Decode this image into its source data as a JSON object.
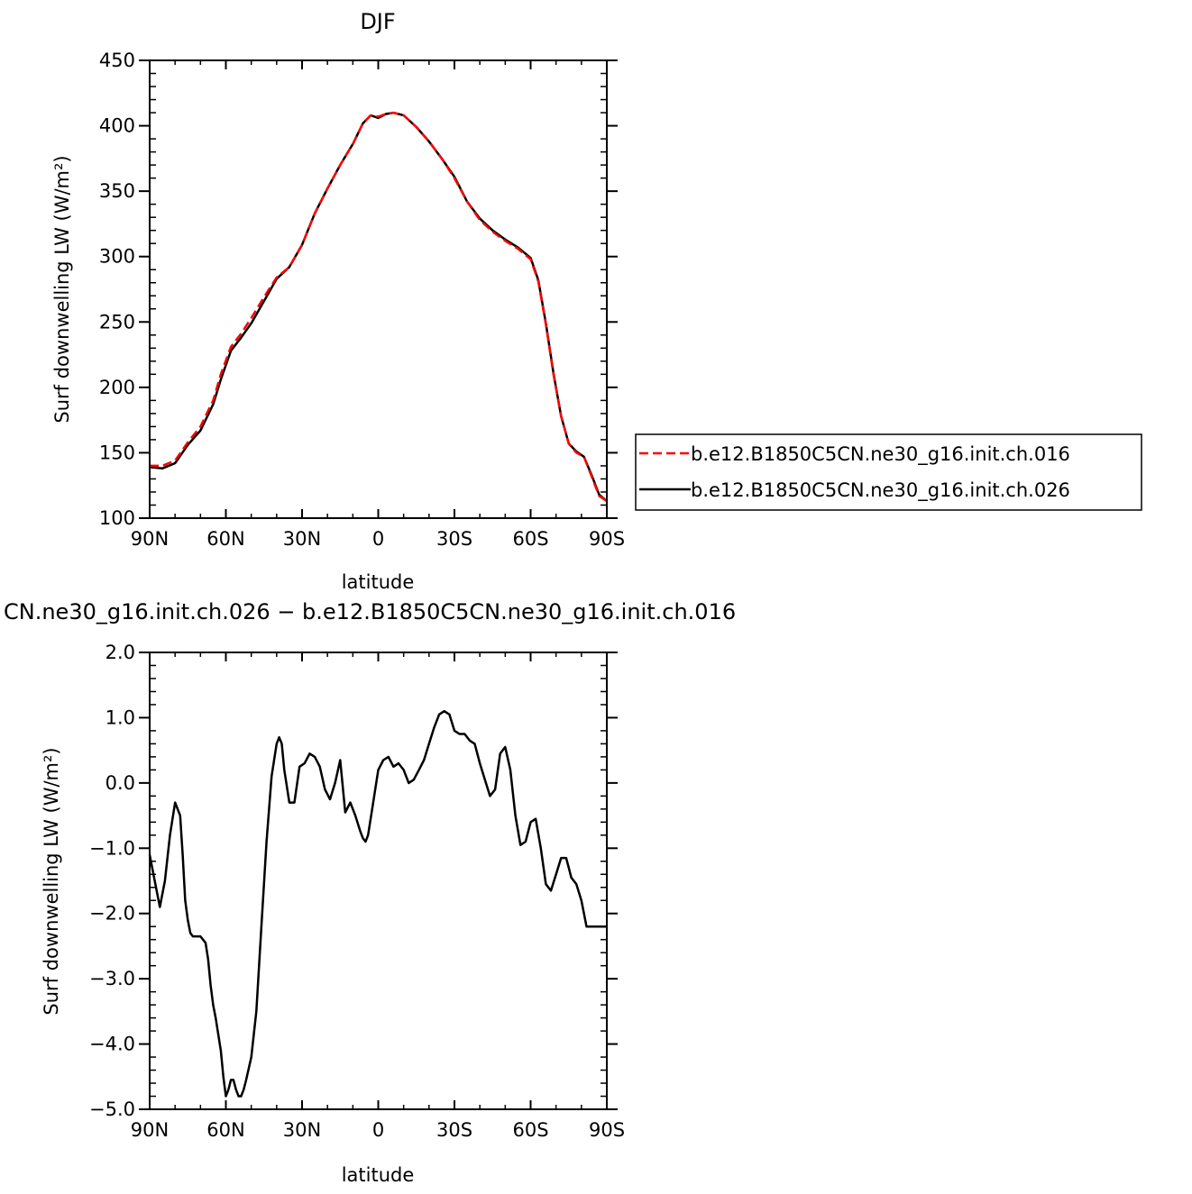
{
  "chart_data": [
    {
      "type": "line",
      "title": "DJF",
      "xlabel": "latitude",
      "ylabel": "Surf  downwelling LW  (W/m²)",
      "xlim": [
        90,
        -90
      ],
      "ylim": [
        100,
        450
      ],
      "x_ticks": [
        90,
        60,
        30,
        0,
        -30,
        -60,
        -90
      ],
      "x_tick_labels": [
        "90N",
        "60N",
        "30N",
        "0",
        "30S",
        "60S",
        "90S"
      ],
      "y_ticks": [
        100,
        150,
        200,
        250,
        300,
        350,
        400,
        450
      ],
      "y_tick_labels": [
        "100",
        "150",
        "200",
        "250",
        "300",
        "350",
        "400",
        "450"
      ],
      "legend_position": "right",
      "series": [
        {
          "name": "b.e12.B1850C5CN.ne30_g16.init.ch.016",
          "color": "#ff0000",
          "dash": "dashed",
          "x": [
            90,
            85,
            80,
            75,
            70,
            65,
            62,
            58,
            54,
            50,
            45,
            40,
            35,
            30,
            25,
            20,
            15,
            10,
            6,
            3,
            0,
            -3,
            -6,
            -10,
            -15,
            -20,
            -25,
            -30,
            -35,
            -40,
            -45,
            -50,
            -55,
            -60,
            -63,
            -66,
            -69,
            -72,
            -75,
            -78,
            -81,
            -84,
            -87,
            -90
          ],
          "y": [
            140,
            140,
            144,
            158,
            170,
            190,
            210,
            231,
            241,
            253,
            269,
            284,
            292,
            309,
            333,
            352,
            370,
            386,
            402,
            408,
            407,
            409,
            410,
            408,
            399,
            388,
            375,
            360,
            342,
            328,
            319,
            312,
            306,
            298,
            281,
            248,
            210,
            178,
            157,
            150,
            147,
            132,
            117,
            113
          ]
        },
        {
          "name": "b.e12.B1850C5CN.ne30_g16.init.ch.026",
          "color": "#000000",
          "dash": "solid",
          "x": [
            90,
            85,
            80,
            75,
            70,
            65,
            62,
            58,
            54,
            50,
            45,
            40,
            35,
            30,
            25,
            20,
            15,
            10,
            6,
            3,
            0,
            -3,
            -6,
            -10,
            -15,
            -20,
            -25,
            -30,
            -35,
            -40,
            -45,
            -50,
            -55,
            -60,
            -63,
            -66,
            -69,
            -72,
            -75,
            -78,
            -81,
            -84,
            -87,
            -90
          ],
          "y": [
            139,
            138,
            142,
            156,
            167,
            187,
            206,
            228,
            238,
            249,
            266,
            283,
            292,
            309,
            333,
            352,
            370,
            386,
            402,
            408,
            406,
            409,
            410,
            408,
            399,
            388,
            375,
            361,
            342,
            329,
            320,
            313,
            307,
            299,
            282,
            249,
            211,
            178,
            157,
            151,
            147,
            133,
            118,
            113
          ]
        }
      ]
    },
    {
      "type": "line",
      "title": "CN.ne30_g16.init.ch.026  −  b.e12.B1850C5CN.ne30_g16.init.ch.016",
      "xlabel": "latitude",
      "ylabel": "Surf  downwelling LW  (W/m²)",
      "xlim": [
        90,
        -90
      ],
      "ylim": [
        -5.0,
        2.0
      ],
      "x_ticks": [
        90,
        60,
        30,
        0,
        -30,
        -60,
        -90
      ],
      "x_tick_labels": [
        "90N",
        "60N",
        "30N",
        "0",
        "30S",
        "60S",
        "90S"
      ],
      "y_ticks": [
        -5.0,
        -4.0,
        -3.0,
        -2.0,
        -1.0,
        0.0,
        1.0,
        2.0
      ],
      "y_tick_labels": [
        "−5.0",
        "−4.0",
        "−3.0",
        "−2.0",
        "−1.0",
        "0.0",
        "1.0",
        "2.0"
      ],
      "series": [
        {
          "name": "",
          "color": "#000000",
          "dash": "solid",
          "x": [
            90,
            88,
            86,
            84,
            82,
            80,
            78,
            77,
            76,
            75,
            74,
            73,
            72,
            70,
            68,
            67,
            66,
            65,
            64,
            62,
            61,
            60,
            59,
            58,
            57,
            56,
            55,
            54,
            53,
            52,
            50,
            48,
            46,
            44,
            42,
            40,
            39,
            38,
            37,
            35,
            33,
            31,
            29,
            27,
            25,
            23,
            21,
            19,
            17,
            15,
            13,
            11,
            9,
            7,
            6,
            5,
            4,
            2,
            0,
            -2,
            -4,
            -6,
            -8,
            -10,
            -12,
            -14,
            -16,
            -18,
            -20,
            -22,
            -24,
            -26,
            -28,
            -30,
            -32,
            -34,
            -36,
            -38,
            -40,
            -42,
            -44,
            -46,
            -48,
            -50,
            -52,
            -54,
            -56,
            -58,
            -60,
            -62,
            -64,
            -66,
            -68,
            -70,
            -72,
            -74,
            -75,
            -76,
            -78,
            -80,
            -82,
            -84,
            -86,
            -88,
            -90
          ],
          "y": [
            -1.1,
            -1.5,
            -1.9,
            -1.5,
            -0.8,
            -0.3,
            -0.5,
            -1.1,
            -1.8,
            -2.1,
            -2.3,
            -2.35,
            -2.35,
            -2.35,
            -2.45,
            -2.7,
            -3.1,
            -3.4,
            -3.6,
            -4.1,
            -4.5,
            -4.8,
            -4.7,
            -4.55,
            -4.55,
            -4.7,
            -4.8,
            -4.8,
            -4.7,
            -4.55,
            -4.2,
            -3.5,
            -2.2,
            -0.9,
            0.1,
            0.6,
            0.7,
            0.6,
            0.2,
            -0.3,
            -0.3,
            0.25,
            0.3,
            0.45,
            0.4,
            0.25,
            -0.1,
            -0.25,
            0.0,
            0.35,
            -0.45,
            -0.3,
            -0.5,
            -0.75,
            -0.85,
            -0.9,
            -0.8,
            -0.3,
            0.2,
            0.35,
            0.4,
            0.25,
            0.3,
            0.2,
            0.0,
            0.05,
            0.2,
            0.35,
            0.6,
            0.85,
            1.05,
            1.1,
            1.05,
            0.8,
            0.75,
            0.75,
            0.65,
            0.6,
            0.3,
            0.05,
            -0.2,
            -0.1,
            0.45,
            0.55,
            0.2,
            -0.5,
            -0.95,
            -0.9,
            -0.6,
            -0.55,
            -1.0,
            -1.55,
            -1.65,
            -1.4,
            -1.15,
            -1.15,
            -1.3,
            -1.45,
            -1.55,
            -1.8,
            -2.2,
            -2.2,
            -2.2,
            -2.2,
            -2.2
          ]
        }
      ]
    }
  ]
}
